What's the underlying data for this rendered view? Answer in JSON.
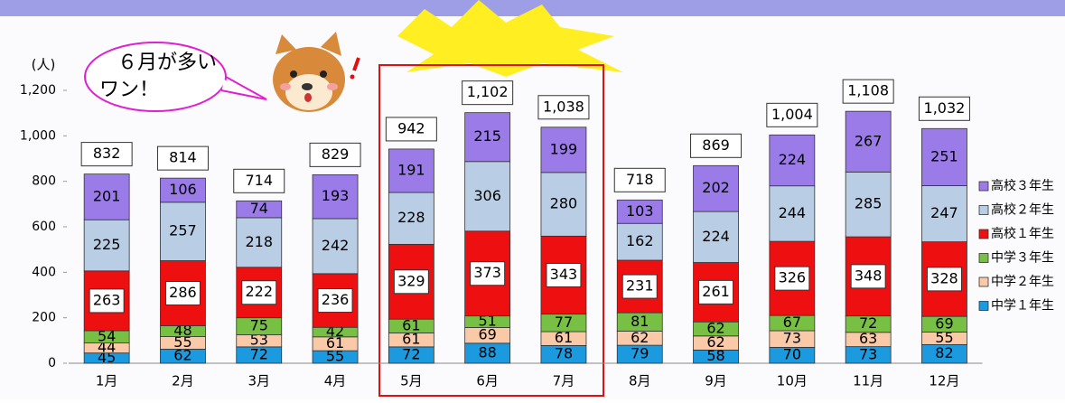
{
  "chart_data": {
    "type": "stacked-bar",
    "y_unit": "(人)",
    "callout": [
      "６月が多い",
      "ワン！"
    ],
    "categories": [
      "1月",
      "2月",
      "3月",
      "4月",
      "5月",
      "6月",
      "7月",
      "8月",
      "9月",
      "10月",
      "11月",
      "12月"
    ],
    "series": [
      {
        "name": "中学１年生",
        "color": "#1b9ae0",
        "values": [
          45,
          62,
          72,
          55,
          72,
          88,
          78,
          79,
          58,
          70,
          73,
          82
        ]
      },
      {
        "name": "中学２年生",
        "color": "#f9c9a8",
        "values": [
          44,
          55,
          53,
          61,
          61,
          69,
          61,
          62,
          62,
          73,
          63,
          55
        ]
      },
      {
        "name": "中学３年生",
        "color": "#77c043",
        "values": [
          54,
          48,
          75,
          42,
          61,
          51,
          77,
          81,
          62,
          67,
          72,
          69
        ]
      },
      {
        "name": "高校１年生",
        "color": "#ee1010",
        "values": [
          263,
          286,
          222,
          236,
          329,
          373,
          343,
          231,
          261,
          326,
          348,
          328
        ]
      },
      {
        "name": "高校２年生",
        "color": "#b9cde5",
        "values": [
          225,
          257,
          218,
          242,
          228,
          306,
          280,
          162,
          224,
          244,
          285,
          247
        ]
      },
      {
        "name": "高校３年生",
        "color": "#9a7be8",
        "values": [
          201,
          106,
          74,
          193,
          191,
          215,
          199,
          103,
          202,
          224,
          267,
          251
        ]
      }
    ],
    "totals": {
      "values": [
        832,
        814,
        714,
        829,
        942,
        1102,
        1038,
        718,
        869,
        1004,
        1108,
        1032
      ],
      "value_labels": [
        "832",
        "814",
        "714",
        "829",
        "942",
        "1,102",
        "1,038",
        "718",
        "869",
        "1,004",
        "1,108",
        "1,032"
      ]
    },
    "ylim": [
      0,
      1200
    ],
    "yticks": [
      0,
      200,
      400,
      600,
      800,
      {
        "value": 1000,
        "label": "1,000"
      },
      {
        "value": 1200,
        "label": "1,200"
      }
    ]
  }
}
